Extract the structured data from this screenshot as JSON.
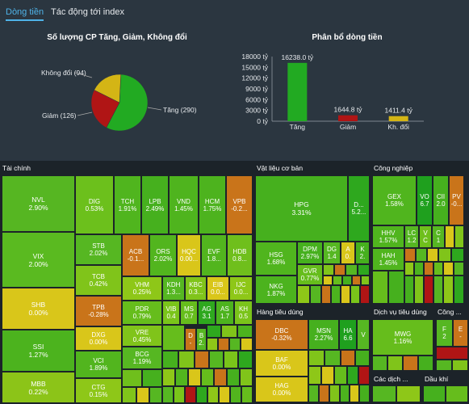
{
  "tabs": [
    {
      "label": "Dòng tiền"
    },
    {
      "label": "Tác động tới index"
    }
  ],
  "pie": {
    "title": "Số lượng CP Tăng, Giảm, Không đổi",
    "labels": {
      "tang": "Tăng (290)",
      "giam": "Giảm (126)",
      "khongdoi": "Không đổi (94)"
    }
  },
  "bar": {
    "title": "Phân bổ dòng tiền"
  },
  "colors": {
    "up": "#22aa22",
    "down": "#b01515",
    "flat": "#d4b515",
    "up_light": "#7ac41a",
    "up_mid": "#4cb620",
    "down_orange": "#c8741a"
  },
  "chart_data": [
    {
      "type": "pie",
      "title": "Số lượng CP Tăng, Giảm, Không đổi",
      "categories": [
        "Tăng",
        "Giảm",
        "Không đổi"
      ],
      "values": [
        290,
        126,
        94
      ],
      "labels": [
        "Tăng (290)",
        "Giảm (126)",
        "Không đổi (94)"
      ]
    },
    {
      "type": "bar",
      "title": "Phân bổ dòng tiền",
      "categories": [
        "Tăng",
        "Giảm",
        "Kh. đổi"
      ],
      "values": [
        16238.0,
        1644.8,
        1411.4
      ],
      "data_labels": [
        "16238.0 tỷ",
        "1644.8 tỷ",
        "1411.4 tỷ"
      ],
      "ylim": [
        0,
        18000
      ],
      "yticks": [
        "0 tỷ",
        "3000 tỷ",
        "6000 tỷ",
        "9000 tỷ",
        "12000 tỷ",
        "15000 tỷ",
        "18000 tỷ"
      ]
    }
  ],
  "treemap": {
    "sectors": {
      "taichinh": "Tài chính",
      "vatlieu": "Vật liệu cơ bản",
      "congnghiep": "Công nghiệp",
      "hangtieudung": "Hàng tiêu dùng",
      "dichvu": "Dịch vụ tiêu dùng",
      "congnghe": "Công ...",
      "cacdich": "Các dịch ...",
      "daukhi": "Dầu khí"
    },
    "cells": {
      "NVL": {
        "t": "NVL",
        "v": "2.90%"
      },
      "VIX": {
        "t": "VIX",
        "v": "2.00%"
      },
      "SHB": {
        "t": "SHB",
        "v": "0.00%"
      },
      "SSI": {
        "t": "SSI",
        "v": "1.27%"
      },
      "MBB": {
        "t": "MBB",
        "v": "0.22%"
      },
      "DIG": {
        "t": "DIG",
        "v": "0.53%"
      },
      "TCH": {
        "t": "TCH",
        "v": "1.91%"
      },
      "LPB": {
        "t": "LPB",
        "v": "2.49%"
      },
      "VND": {
        "t": "VND",
        "v": "1.45%"
      },
      "HCM": {
        "t": "HCM",
        "v": "1.75%"
      },
      "VPB": {
        "t": "VPB",
        "v": "-0.2..."
      },
      "STB": {
        "t": "STB",
        "v": "2.02%"
      },
      "TCB": {
        "t": "TCB",
        "v": "0.42%"
      },
      "TPB": {
        "t": "TPB",
        "v": "-0.28%"
      },
      "DXG": {
        "t": "DXG",
        "v": "0.00%"
      },
      "VCI": {
        "t": "VCI",
        "v": "1.89%"
      },
      "CTG": {
        "t": "CTG",
        "v": "0.15%"
      },
      "ACB": {
        "t": "ACB",
        "v": "-0.1..."
      },
      "ORS": {
        "t": "ORS",
        "v": "2.02%"
      },
      "HQC": {
        "t": "HQC",
        "v": "0.00..."
      },
      "EVF": {
        "t": "EVF",
        "v": "1.8..."
      },
      "HDB": {
        "t": "HDB",
        "v": "0.8..."
      },
      "VHM": {
        "t": "VHM",
        "v": "0.25%"
      },
      "KDH": {
        "t": "KDH",
        "v": "1.3..."
      },
      "KBC": {
        "t": "KBC",
        "v": "0.3..."
      },
      "EIB": {
        "t": "EIB",
        "v": "0.0..."
      },
      "IJC": {
        "t": "IJC",
        "v": "0.0..."
      },
      "PDR": {
        "t": "PDR",
        "v": "0.79%"
      },
      "VIB": {
        "t": "VIB",
        "v": "0.4"
      },
      "MS": {
        "t": "MS",
        "v": "0.7"
      },
      "AG": {
        "t": "AG",
        "v": "3.1"
      },
      "AS": {
        "t": "AS",
        "v": "1.7"
      },
      "KH": {
        "t": "KH",
        "v": "0.5"
      },
      "VRE": {
        "t": "VRE",
        "v": "0.45%"
      },
      "BCG": {
        "t": "BCG",
        "v": "1.19%"
      },
      "D": {
        "t": "D",
        "v": "-"
      },
      "B": {
        "t": "B",
        "v": "2."
      },
      "HPG": {
        "t": "HPG",
        "v": "3.31%"
      },
      "Dx": {
        "t": "D...",
        "v": "5.2..."
      },
      "HSG": {
        "t": "HSG",
        "v": "1.68%"
      },
      "DPM": {
        "t": "DPM",
        "v": "2.97%"
      },
      "DG": {
        "t": "DG",
        "v": "1.4"
      },
      "A": {
        "t": "A",
        "v": "0."
      },
      "K": {
        "t": "K",
        "v": "2."
      },
      "GVR": {
        "t": "GVR",
        "v": "0.77%"
      },
      "NKG": {
        "t": "NKG",
        "v": "1.87%"
      },
      "GEX": {
        "t": "GEX",
        "v": "1.58%"
      },
      "VO": {
        "t": "VO",
        "v": "6.7"
      },
      "CII": {
        "t": "CII",
        "v": "2.0"
      },
      "PV": {
        "t": "PV",
        "v": "-0..."
      },
      "HHV": {
        "t": "HHV",
        "v": "1.57%"
      },
      "LC": {
        "t": "LC",
        "v": "1.2"
      },
      "VC": {
        "t": "V",
        "v": "C"
      },
      "C": {
        "t": "C",
        "v": "1"
      },
      "HAH": {
        "t": "HAH",
        "v": "1.45%"
      },
      "DBC": {
        "t": "DBC",
        "v": "-0.32%"
      },
      "MSN": {
        "t": "MSN",
        "v": "2.27%"
      },
      "HA": {
        "t": "HA",
        "v": "6.6"
      },
      "V": {
        "t": "V",
        "v": ""
      },
      "BAF": {
        "t": "BAF",
        "v": "0.00%"
      },
      "HAG": {
        "t": "HAG",
        "v": "0.00%"
      },
      "MWG": {
        "t": "MWG",
        "v": "1.16%"
      },
      "F": {
        "t": "F",
        "v": "2"
      },
      "E": {
        "t": "E",
        "v": "-"
      }
    }
  }
}
